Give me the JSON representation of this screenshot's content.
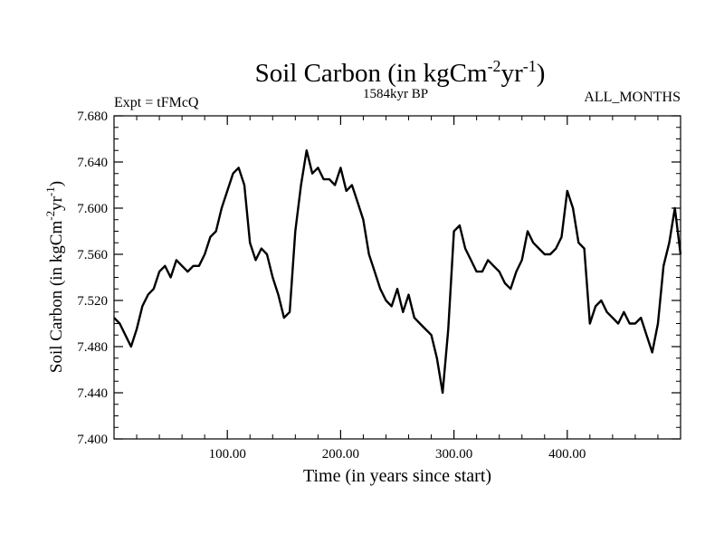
{
  "chart_data": {
    "type": "line",
    "title_main": "Soil Carbon (in kgCm",
    "title_sup1": "-2",
    "title_mid": "yr",
    "title_sup2": "-1",
    "title_end": ")",
    "subtitle_left": "Expt = tFMcQ",
    "subtitle_center": "1584kyr BP",
    "subtitle_right": "ALL_MONTHS",
    "xlabel": "Time (in years since start)",
    "ylabel_main": "Soil Carbon (in kgCm",
    "ylabel_sup1": "-2",
    "ylabel_mid": "yr",
    "ylabel_sup2": "-1",
    "ylabel_end": ")",
    "xlim": [
      0,
      500
    ],
    "ylim": [
      7.4,
      7.68
    ],
    "xticks": [
      100,
      200,
      300,
      400
    ],
    "xtick_labels": [
      "100.00",
      "200.00",
      "300.00",
      "400.00"
    ],
    "yticks": [
      7.4,
      7.44,
      7.48,
      7.52,
      7.56,
      7.6,
      7.64,
      7.68
    ],
    "ytick_labels": [
      "7.400",
      "7.440",
      "7.480",
      "7.520",
      "7.560",
      "7.600",
      "7.640",
      "7.680"
    ],
    "line_color": "#000000",
    "series": [
      {
        "name": "Soil Carbon",
        "x": [
          0,
          5,
          10,
          15,
          20,
          25,
          30,
          35,
          40,
          45,
          50,
          55,
          60,
          65,
          70,
          75,
          80,
          85,
          90,
          95,
          100,
          105,
          110,
          115,
          120,
          125,
          130,
          135,
          140,
          145,
          150,
          155,
          160,
          165,
          170,
          175,
          180,
          185,
          190,
          195,
          200,
          205,
          210,
          215,
          220,
          225,
          230,
          235,
          240,
          245,
          250,
          255,
          260,
          265,
          270,
          275,
          280,
          285,
          290,
          295,
          300,
          305,
          310,
          315,
          320,
          325,
          330,
          335,
          340,
          345,
          350,
          355,
          360,
          365,
          370,
          375,
          380,
          385,
          390,
          395,
          400,
          405,
          410,
          415,
          420,
          425,
          430,
          435,
          440,
          445,
          450,
          455,
          460,
          465,
          470,
          475,
          480,
          485,
          490,
          495,
          500
        ],
        "values": [
          7.505,
          7.5,
          7.49,
          7.48,
          7.495,
          7.515,
          7.525,
          7.53,
          7.545,
          7.55,
          7.54,
          7.555,
          7.55,
          7.545,
          7.55,
          7.55,
          7.56,
          7.575,
          7.58,
          7.6,
          7.615,
          7.63,
          7.635,
          7.62,
          7.57,
          7.555,
          7.565,
          7.56,
          7.54,
          7.525,
          7.505,
          7.51,
          7.58,
          7.62,
          7.65,
          7.63,
          7.635,
          7.625,
          7.625,
          7.62,
          7.635,
          7.615,
          7.62,
          7.605,
          7.59,
          7.56,
          7.545,
          7.53,
          7.52,
          7.515,
          7.53,
          7.51,
          7.525,
          7.505,
          7.5,
          7.495,
          7.49,
          7.47,
          7.44,
          7.495,
          7.58,
          7.585,
          7.565,
          7.555,
          7.545,
          7.545,
          7.555,
          7.55,
          7.545,
          7.535,
          7.53,
          7.545,
          7.555,
          7.58,
          7.57,
          7.565,
          7.56,
          7.56,
          7.565,
          7.575,
          7.615,
          7.6,
          7.57,
          7.565,
          7.5,
          7.515,
          7.52,
          7.51,
          7.505,
          7.5,
          7.51,
          7.5,
          7.5,
          7.505,
          7.49,
          7.475,
          7.5,
          7.55,
          7.57,
          7.6,
          7.56
        ]
      }
    ]
  }
}
